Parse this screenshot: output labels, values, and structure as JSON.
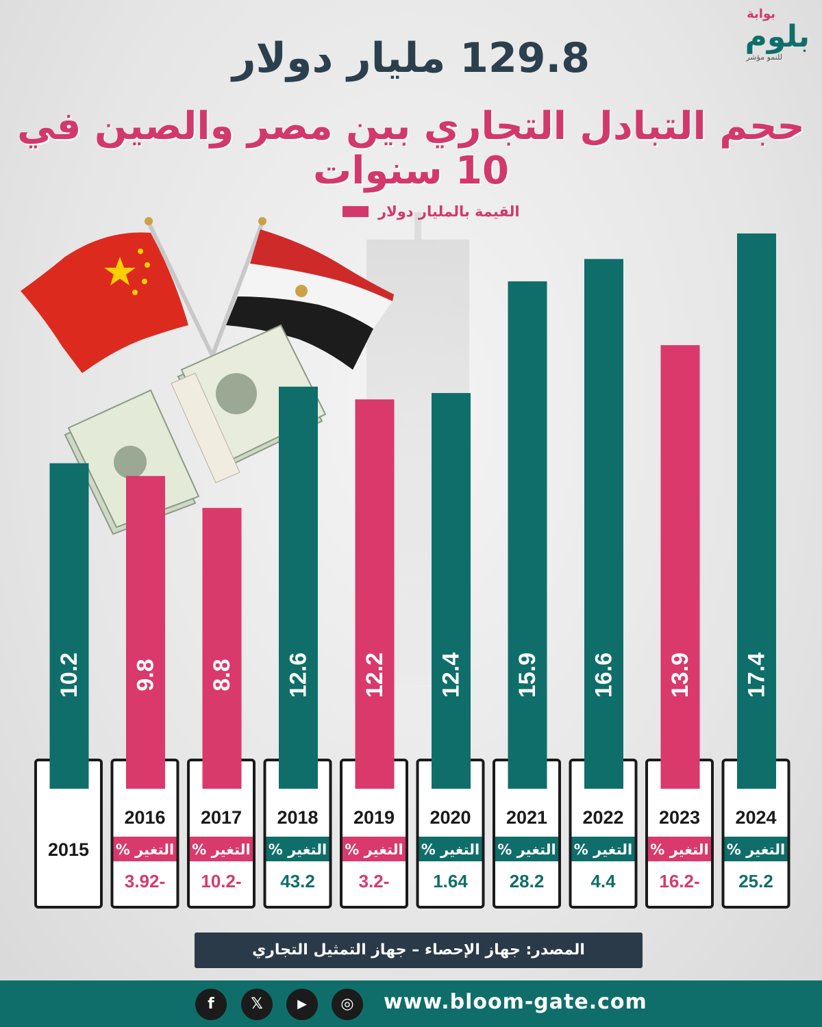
{
  "brand": {
    "logo_prefix": "بوابة",
    "logo_main": "بلوم",
    "logo_tagline": "للنمو مؤشر",
    "website": "www.bloom-gate.com"
  },
  "header": {
    "title_line1": "129.8 مليار دولار",
    "title_line2": "حجم التبادل التجاري بين مصر والصين في 10 سنوات"
  },
  "legend": {
    "label": "القيمة بالمليار دولار"
  },
  "chart_data": {
    "type": "bar",
    "categories": [
      "2015",
      "2016",
      "2017",
      "2018",
      "2019",
      "2020",
      "2021",
      "2022",
      "2023",
      "2024"
    ],
    "values": [
      10.2,
      9.8,
      8.8,
      12.6,
      12.2,
      12.4,
      15.9,
      16.6,
      13.9,
      17.4
    ],
    "change_label": "التغير %",
    "changes": [
      null,
      "3.92-",
      "10.2-",
      "43.2",
      "3.2-",
      "1.64",
      "28.2",
      "4.4",
      "16.2-",
      "25.2"
    ],
    "bar_colors": [
      "#0f6e6a",
      "#d9396b",
      "#d9396b",
      "#0f6e6a",
      "#d9396b",
      "#0f6e6a",
      "#0f6e6a",
      "#0f6e6a",
      "#d9396b",
      "#0f6e6a"
    ],
    "colors": {
      "increase": "#0f6e6a",
      "decrease": "#d9396b"
    },
    "ylim": [
      0,
      17.4
    ],
    "title": "",
    "xlabel": "",
    "ylabel": "",
    "legend_position": "top"
  },
  "source": {
    "text": "المصدر: جهاز الإحصاء – جهاز التمثيل التجاري"
  },
  "social": {
    "facebook_icon": "f",
    "x_icon": "𝕏",
    "youtube_icon": "▶",
    "instagram_icon": "◎"
  }
}
